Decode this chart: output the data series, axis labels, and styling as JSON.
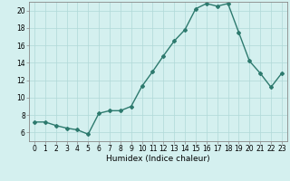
{
  "x": [
    0,
    1,
    2,
    3,
    4,
    5,
    6,
    7,
    8,
    9,
    10,
    11,
    12,
    13,
    14,
    15,
    16,
    17,
    18,
    19,
    20,
    21,
    22,
    23
  ],
  "y": [
    7.2,
    7.2,
    6.8,
    6.5,
    6.3,
    5.8,
    8.2,
    8.5,
    8.5,
    9.0,
    11.3,
    13.0,
    14.8,
    16.5,
    17.8,
    20.2,
    20.8,
    20.5,
    20.8,
    17.5,
    14.2,
    12.8,
    11.2,
    12.8
  ],
  "line_color": "#2d7a6e",
  "marker": "D",
  "markersize": 2,
  "linewidth": 1.0,
  "bg_color": "#d4f0ef",
  "grid_color": "#b0d8d8",
  "xlabel": "Humidex (Indice chaleur)",
  "xlim": [
    -0.5,
    23.5
  ],
  "ylim": [
    5.0,
    21.0
  ],
  "yticks": [
    6,
    8,
    10,
    12,
    14,
    16,
    18,
    20
  ],
  "xticks": [
    0,
    1,
    2,
    3,
    4,
    5,
    6,
    7,
    8,
    9,
    10,
    11,
    12,
    13,
    14,
    15,
    16,
    17,
    18,
    19,
    20,
    21,
    22,
    23
  ],
  "xlabel_fontsize": 6.5,
  "tick_fontsize": 5.5
}
